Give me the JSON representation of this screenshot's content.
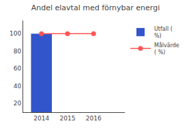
{
  "chart_data": {
    "type": "bar",
    "title": "Andel elavtal med förnybar energi",
    "x": [
      2014,
      2015,
      2016
    ],
    "series": [
      {
        "name": "Utfall (\n%)",
        "type": "bar",
        "color": "#3355cc",
        "values": [
          100,
          null,
          null
        ]
      },
      {
        "name": "Målvärde\n( %)",
        "type": "line",
        "color": "#ff5555",
        "marker": "circle",
        "values": [
          100,
          100,
          100
        ]
      }
    ],
    "xlim": [
      2013.3,
      2017.2
    ],
    "xticks": [
      2014,
      2015,
      2016
    ],
    "ylim": [
      10,
      115
    ],
    "yticks": [
      20,
      40,
      60,
      80,
      100
    ],
    "grid": false,
    "legend": "upper right"
  }
}
